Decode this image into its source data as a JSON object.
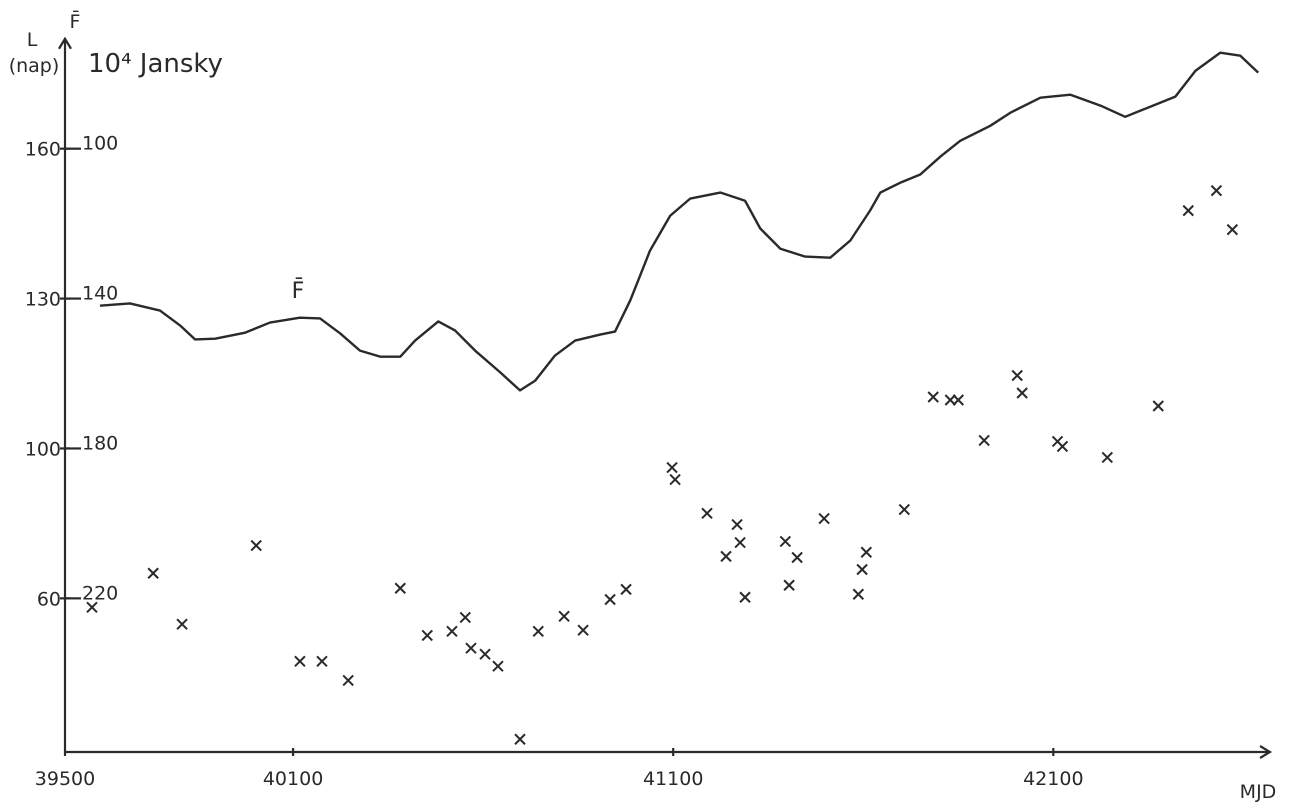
{
  "chart_data": {
    "type": "scatter",
    "ylabel": "L",
    "ylabel_unit": "(nap)",
    "y2label": "F̄",
    "y2label_unit": "10⁴ Jansky",
    "xlabel": "MJD",
    "annotation": "F̄",
    "xlim": [
      39500,
      42670
    ],
    "xticks": [
      39500,
      40100,
      41100,
      42100
    ],
    "ylim": [
      20,
      182
    ],
    "yticks": [
      160,
      130,
      100,
      60
    ],
    "y2lim": [
      261,
      71
    ],
    "y2ticks": [
      100,
      140,
      180,
      220
    ],
    "color": "#2a2a2a",
    "series": [
      {
        "type": "scatter",
        "axis": "y",
        "x": [
          39571,
          39732,
          39808,
          40003,
          40118,
          40176,
          40245,
          40382,
          40453,
          40518,
          40553,
          40568,
          40605,
          40639,
          40697,
          40745,
          40813,
          40863,
          40934,
          40976,
          41097,
          41105,
          41189,
          41239,
          41268,
          41276,
          41289,
          41395,
          41405,
          41426,
          41497,
          41587,
          41597,
          41608,
          41708,
          41784,
          41829,
          41850,
          41918,
          42005,
          42018,
          42111,
          42124,
          42242,
          42376,
          42455,
          42529,
          42571
        ],
        "values": [
          57.6,
          66.7,
          53.1,
          74.1,
          43.2,
          43.2,
          38.1,
          62.7,
          50.1,
          51.2,
          54.9,
          46.7,
          45.1,
          41.9,
          22.4,
          51.2,
          55.2,
          51.5,
          59.7,
          62.4,
          94.9,
          91.7,
          82.7,
          71.2,
          79.7,
          74.9,
          60.3,
          75.2,
          63.5,
          70.9,
          81.3,
          61.1,
          67.7,
          72.3,
          83.7,
          110.3,
          109.7,
          109.7,
          101.6,
          114.6,
          111.1,
          101.4,
          100.4,
          97.6,
          108.5,
          147.6,
          151.6,
          143.8
        ]
      },
      {
        "type": "line",
        "axis": "y2",
        "x": [
          39592,
          39671,
          39750,
          39803,
          39842,
          39895,
          39974,
          40039,
          40118,
          40171,
          40224,
          40276,
          40329,
          40382,
          40421,
          40482,
          40526,
          40579,
          40645,
          40697,
          40737,
          40789,
          40842,
          40908,
          40947,
          40987,
          41039,
          41092,
          41145,
          41224,
          41289,
          41329,
          41382,
          41447,
          41513,
          41566,
          41618,
          41645,
          41697,
          41750,
          41803,
          41855,
          41934,
          41987,
          42066,
          42145,
          42224,
          42289,
          42355,
          42421,
          42474,
          42539,
          42592,
          42639
        ],
        "values": [
          141.9,
          141.3,
          143.2,
          147.2,
          150.9,
          150.7,
          149.1,
          146.4,
          145.1,
          145.3,
          149.3,
          153.9,
          155.5,
          155.5,
          151.2,
          146.1,
          148.5,
          153.9,
          159.7,
          164.5,
          161.9,
          155.2,
          151.2,
          149.6,
          148.8,
          140.5,
          127.2,
          117.9,
          113.3,
          111.7,
          113.9,
          121.3,
          126.7,
          128.8,
          129.1,
          124.5,
          116.5,
          111.7,
          109.1,
          106.9,
          102.1,
          97.9,
          93.9,
          90.4,
          86.4,
          85.6,
          88.5,
          91.5,
          88.8,
          86.1,
          79.2,
          74.4,
          75.2,
          79.7
        ]
      }
    ]
  }
}
